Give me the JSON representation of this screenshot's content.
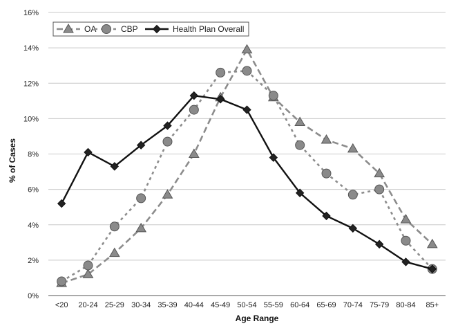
{
  "chart_data": {
    "type": "line",
    "title": "",
    "xlabel": "Age Range",
    "ylabel": "% of Cases",
    "ylim": [
      0,
      16
    ],
    "y_ticks": [
      "0%",
      "2%",
      "4%",
      "6%",
      "8%",
      "10%",
      "12%",
      "14%",
      "16%"
    ],
    "grid": "horizontal",
    "legend_position": "top-left",
    "categories": [
      "<20",
      "20-24",
      "25-29",
      "30-34",
      "35-39",
      "40-44",
      "45-49",
      "50-54",
      "55-59",
      "60-64",
      "65-69",
      "70-74",
      "75-79",
      "80-84",
      "85+"
    ],
    "series": [
      {
        "name": "OA",
        "marker": "triangle",
        "style": "dashed",
        "color": "#8a8a8a",
        "values": [
          0.7,
          1.2,
          2.4,
          3.8,
          5.7,
          8.0,
          11.2,
          13.9,
          11.2,
          9.8,
          8.8,
          8.3,
          6.9,
          4.3,
          2.9
        ]
      },
      {
        "name": "CBP",
        "marker": "circle",
        "style": "dotted",
        "color": "#8a8a8a",
        "values": [
          0.8,
          1.7,
          3.9,
          5.5,
          8.7,
          10.5,
          12.6,
          12.7,
          11.3,
          8.5,
          6.9,
          5.7,
          6.0,
          3.1,
          1.5
        ]
      },
      {
        "name": "Health Plan Overall",
        "marker": "diamond",
        "style": "solid",
        "color": "#111111",
        "values": [
          5.2,
          8.1,
          7.3,
          8.5,
          9.6,
          11.3,
          11.1,
          10.5,
          7.8,
          5.8,
          4.5,
          3.8,
          2.9,
          1.9,
          1.5
        ]
      }
    ]
  }
}
